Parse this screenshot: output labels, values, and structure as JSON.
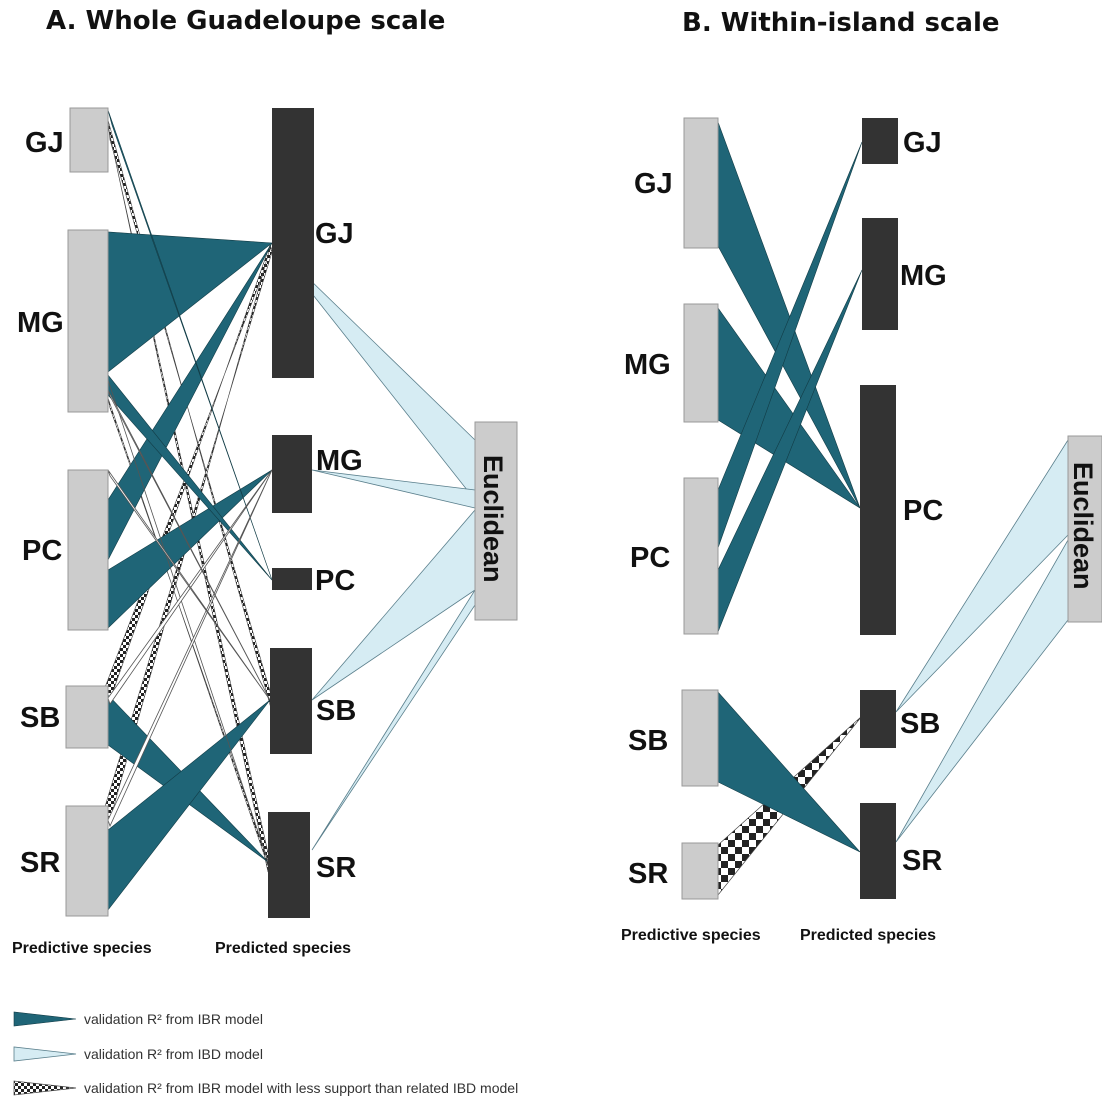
{
  "panels": [
    {
      "id": "A",
      "title": "A.   Whole Guadeloupe scale",
      "predictive_label": "Predictive species",
      "predicted_label": "Predicted species",
      "euclidean_label": "Euclidean",
      "predictive_nodes": [
        "GJ",
        "MG",
        "PC",
        "SB",
        "SR"
      ],
      "predicted_nodes": [
        "GJ",
        "MG",
        "PC",
        "SB",
        "SR"
      ],
      "ibr_links": [
        {
          "from": "GJ",
          "to": "PC"
        },
        {
          "from": "MG",
          "to": "GJ"
        },
        {
          "from": "MG",
          "to": "PC"
        },
        {
          "from": "MG",
          "to": "SR"
        },
        {
          "from": "PC",
          "to": "GJ"
        },
        {
          "from": "PC",
          "to": "MG"
        },
        {
          "from": "SB",
          "to": "SR"
        },
        {
          "from": "SR",
          "to": "SB"
        },
        {
          "from": "SB",
          "to": "GJ"
        },
        {
          "from": "SB",
          "to": "MG"
        },
        {
          "from": "SR",
          "to": "GJ"
        },
        {
          "from": "PC",
          "to": "SB"
        },
        {
          "from": "MG",
          "to": "SB"
        }
      ],
      "ibd_links": [
        {
          "from": "Euclidean",
          "to": "GJ"
        },
        {
          "from": "Euclidean",
          "to": "MG"
        },
        {
          "from": "Euclidean",
          "to": "SB"
        },
        {
          "from": "Euclidean",
          "to": "SR"
        }
      ],
      "weak_ibr_links": [
        {
          "from": "GJ",
          "to": "SB"
        },
        {
          "from": "GJ",
          "to": "SR"
        },
        {
          "from": "SR",
          "to": "GJ"
        },
        {
          "from": "SB",
          "to": "GJ"
        },
        {
          "from": "MG",
          "to": "SR"
        }
      ]
    },
    {
      "id": "B",
      "title": "B.   Within-island scale",
      "predictive_label": "Predictive species",
      "predicted_label": "Predicted species",
      "euclidean_label": "Euclidean",
      "predictive_nodes": [
        "GJ",
        "MG",
        "PC",
        "SB",
        "SR"
      ],
      "predicted_nodes": [
        "GJ",
        "MG",
        "PC",
        "SB",
        "SR"
      ],
      "ibr_links": [
        {
          "from": "GJ",
          "to": "PC"
        },
        {
          "from": "MG",
          "to": "PC"
        },
        {
          "from": "PC",
          "to": "GJ"
        },
        {
          "from": "PC",
          "to": "MG"
        },
        {
          "from": "SB",
          "to": "SR"
        }
      ],
      "ibd_links": [
        {
          "from": "Euclidean",
          "to": "SB"
        },
        {
          "from": "Euclidean",
          "to": "SR"
        }
      ],
      "weak_ibr_links": [
        {
          "from": "SR",
          "to": "SB"
        }
      ]
    }
  ],
  "legend": [
    {
      "kind": "ibr",
      "text": "validation R² from IBR model"
    },
    {
      "kind": "ibd",
      "text": "validation R² from IBD model"
    },
    {
      "kind": "weak",
      "text": "validation R² from IBR model with less support than related IBD model"
    }
  ],
  "colors": {
    "ibr": "#1f6577",
    "ibd": "#d6ecf3",
    "predictive_box": "#cccccc",
    "predicted_box": "#333333",
    "euclidean_box": "#cccccc"
  }
}
